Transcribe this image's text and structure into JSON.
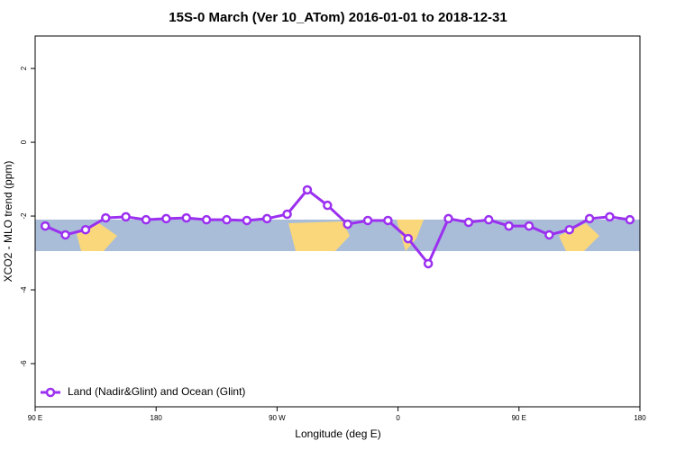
{
  "chart_data": {
    "type": "line",
    "title": "15S-0 March (Ver 10_ATom)   2016-01-01 to 2018-12-31",
    "x_label": "Longitude (deg E)",
    "y_label": "XCO2 - MLO trend (ppm)",
    "x": [
      97.5,
      112.5,
      127.5,
      142.5,
      157.5,
      172.5,
      187.5,
      202.5,
      217.5,
      232.5,
      247.5,
      262.5,
      277.5,
      292.5,
      307.5,
      322.5,
      337.5,
      352.5,
      367.5,
      382.5,
      397.5,
      412.5,
      427.5,
      442.5,
      457.5,
      472.5,
      487.5,
      502.5,
      517.5,
      532.5
    ],
    "series": [
      {
        "name": "Land (Nadir&Glint) and Ocean (Glint)",
        "color": "#9b30f0",
        "values": [
          -2.27,
          -2.51,
          -2.37,
          -2.05,
          -2.02,
          -2.1,
          -2.07,
          -2.05,
          -2.1,
          -2.1,
          -2.12,
          -2.07,
          -1.95,
          -1.29,
          -1.71,
          -2.22,
          -2.12,
          -2.12,
          -2.61,
          -3.29,
          -2.07,
          -2.17,
          -2.1,
          -2.27,
          -2.27,
          -2.51,
          -2.37,
          -2.07,
          -2.02,
          -2.1
        ]
      }
    ],
    "xlim": [
      90,
      540
    ],
    "xticks": [
      {
        "value": 90,
        "label": "90 E"
      },
      180,
      {
        "value": 270,
        "label": "90 W"
      },
      {
        "value": 360,
        "label": "0"
      },
      {
        "value": 450,
        "label": "90 E"
      },
      {
        "value": 540,
        "label": "180"
      }
    ],
    "ylim": [
      -7.17,
      2.88
    ],
    "yticks": [
      -6,
      -4,
      -2,
      0,
      2
    ],
    "legend": "bottom-left"
  }
}
